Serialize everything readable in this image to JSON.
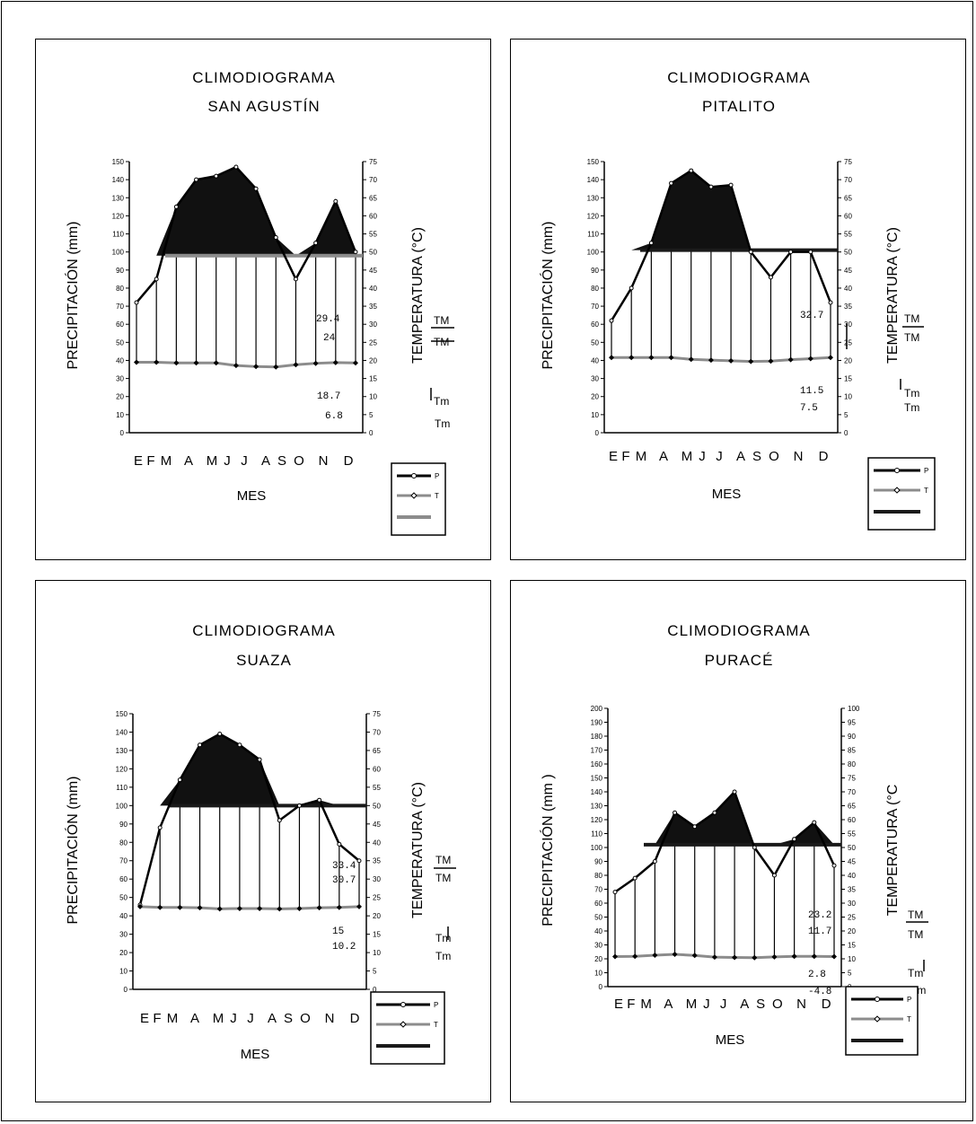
{
  "chart_data": [
    {
      "type": "line",
      "title": "CLIMODIOGRAMA",
      "subtitle": "SAN AGUSTÍN",
      "xlabel": "MES",
      "ylabel": "PRECIPITACIÓN (mm)",
      "y2label": "TEMPERATURA (°C)",
      "categories": [
        "E",
        "F",
        "M",
        "A",
        "M",
        "J",
        "J",
        "A",
        "S",
        "O",
        "N",
        "D"
      ],
      "ylim": [
        0,
        150
      ],
      "y2lim": [
        0,
        75
      ],
      "yticks": [
        "0",
        "10",
        "20",
        "30",
        "40",
        "50",
        "60",
        "70",
        "80",
        "90",
        "100",
        "110",
        "120",
        "130",
        "140",
        "150"
      ],
      "y2ticks": [
        "0",
        "5",
        "10",
        "15",
        "20",
        "25",
        "30",
        "35",
        "40",
        "45",
        "50",
        "55",
        "60",
        "65",
        "70",
        "75"
      ],
      "series": [
        {
          "name": "P",
          "values": [
            72,
            85,
            125,
            140,
            142,
            147,
            135,
            108,
            85,
            105,
            128,
            100
          ]
        },
        {
          "name": "T",
          "values": [
            19.5,
            19.5,
            19.3,
            19.3,
            19.3,
            18.6,
            18.3,
            18.2,
            18.8,
            19.2,
            19.4,
            19.3
          ]
        }
      ],
      "reference_line": 49,
      "annotations": [
        "29.4",
        "24",
        "18.7",
        "6.8"
      ],
      "tm_labels": [
        "TM",
        "TM",
        "Tm",
        "Tm"
      ],
      "legend": [
        "P",
        "T",
        ""
      ]
    },
    {
      "type": "line",
      "title": "CLIMODIOGRAMA",
      "subtitle": "PITALITO",
      "xlabel": "MES",
      "ylabel": "PRECIPITACIÓN (mm)",
      "y2label": "TEMPERATURA (°C)",
      "categories": [
        "E",
        "F",
        "M",
        "A",
        "M",
        "J",
        "J",
        "A",
        "S",
        "O",
        "N",
        "D"
      ],
      "ylim": [
        0,
        150
      ],
      "y2lim": [
        0,
        75
      ],
      "yticks": [
        "0",
        "10",
        "20",
        "30",
        "40",
        "50",
        "60",
        "70",
        "80",
        "90",
        "100",
        "110",
        "120",
        "130",
        "140",
        "150"
      ],
      "y2ticks": [
        "0",
        "5",
        "10",
        "15",
        "20",
        "25",
        "30",
        "35",
        "40",
        "45",
        "50",
        "55",
        "60",
        "65",
        "70",
        "75"
      ],
      "series": [
        {
          "name": "P",
          "values": [
            62,
            80,
            105,
            138,
            145,
            136,
            137,
            100,
            86,
            100,
            100,
            72
          ]
        },
        {
          "name": "T",
          "values": [
            20.8,
            20.8,
            20.8,
            20.8,
            20.3,
            20.1,
            19.9,
            19.7,
            19.8,
            20.2,
            20.5,
            20.8
          ]
        }
      ],
      "reference_line": 50.5,
      "annotations": [
        "32.7",
        "11.5",
        "7.5"
      ],
      "tm_labels": [
        "TM",
        "TM",
        "Tm",
        "Tm"
      ],
      "legend": [
        "P",
        "T",
        ""
      ]
    },
    {
      "type": "line",
      "title": "CLIMODIOGRAMA",
      "subtitle": "SUAZA",
      "xlabel": "MES",
      "ylabel": "PRECIPITACIÓN (mm)",
      "y2label": "TEMPERATURA (°C)",
      "categories": [
        "E",
        "F",
        "M",
        "A",
        "M",
        "J",
        "J",
        "A",
        "S",
        "O",
        "N",
        "D"
      ],
      "ylim": [
        0,
        150
      ],
      "y2lim": [
        0,
        75
      ],
      "yticks": [
        "0",
        "10",
        "20",
        "30",
        "40",
        "50",
        "60",
        "70",
        "80",
        "90",
        "100",
        "110",
        "120",
        "130",
        "140",
        "150"
      ],
      "y2ticks": [
        "0",
        "5",
        "10",
        "15",
        "20",
        "25",
        "30",
        "35",
        "40",
        "45",
        "50",
        "55",
        "60",
        "65",
        "70",
        "75"
      ],
      "series": [
        {
          "name": "P",
          "values": [
            46,
            88,
            114,
            133,
            139,
            133,
            125,
            92,
            100,
            103,
            79,
            70
          ]
        },
        {
          "name": "T",
          "values": [
            22.5,
            22.3,
            22.3,
            22.2,
            21.9,
            22.0,
            22.0,
            21.9,
            22.0,
            22.2,
            22.3,
            22.5
          ]
        }
      ],
      "reference_line": 50,
      "annotations": [
        "33.4",
        "30.7",
        "15",
        "10.2"
      ],
      "tm_labels": [
        "TM",
        "TM",
        "Tm",
        "Tm"
      ],
      "legend": [
        "P",
        "T",
        ""
      ]
    },
    {
      "type": "line",
      "title": "CLIMODIOGRAMA",
      "subtitle": "PURACÉ",
      "xlabel": "MES",
      "ylabel": "PRECIPITACIÓN (mm )",
      "y2label": "TEMPERATURA (°C",
      "categories": [
        "E",
        "F",
        "M",
        "A",
        "M",
        "J",
        "J",
        "A",
        "S",
        "O",
        "N",
        "D"
      ],
      "ylim": [
        0,
        200
      ],
      "y2lim": [
        0,
        100
      ],
      "yticks": [
        "0",
        "10",
        "20",
        "30",
        "40",
        "50",
        "60",
        "70",
        "80",
        "90",
        "100",
        "110",
        "120",
        "130",
        "140",
        "150",
        "160",
        "170",
        "180",
        "190",
        "200"
      ],
      "y2ticks": [
        "0",
        "5",
        "10",
        "15",
        "20",
        "25",
        "30",
        "35",
        "40",
        "45",
        "50",
        "55",
        "60",
        "65",
        "70",
        "75",
        "80",
        "85",
        "90",
        "95",
        "100"
      ],
      "series": [
        {
          "name": "P",
          "values": [
            68,
            78,
            90,
            125,
            115,
            125,
            140,
            100,
            80,
            106,
            118,
            87
          ]
        },
        {
          "name": "T",
          "values": [
            10.8,
            10.9,
            11.3,
            11.6,
            11.2,
            10.6,
            10.5,
            10.4,
            10.7,
            10.9,
            10.9,
            10.8
          ]
        }
      ],
      "reference_line": 51,
      "annotations": [
        "23.2",
        "11.7",
        "2.8",
        "-4.8"
      ],
      "tm_labels": [
        "TM",
        "TM",
        "Tm",
        "Tm"
      ],
      "legend": [
        "P",
        "T",
        ""
      ]
    }
  ]
}
